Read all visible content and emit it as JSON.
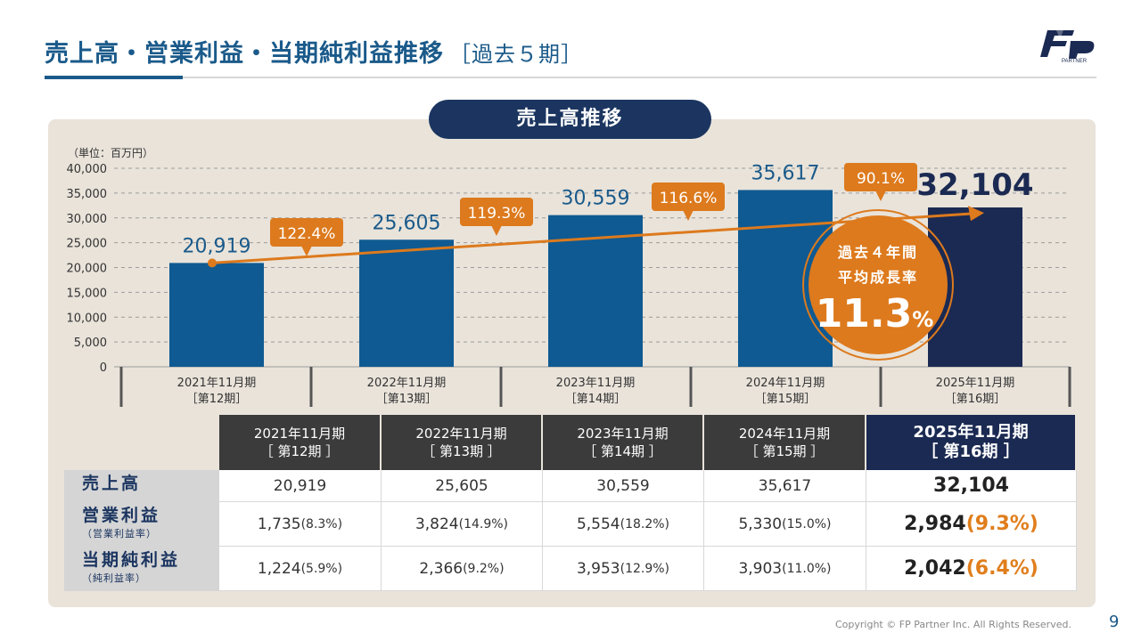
{
  "title": {
    "main": "売上高・営業利益・当期純利益推移",
    "sub": "［過去５期］"
  },
  "logo": {
    "text": "PARTNER"
  },
  "pill": "売上高推移",
  "chart_data": {
    "type": "bar",
    "title": "売上高推移",
    "unit_label": "（単位：百万円）",
    "ylim": [
      0,
      40000
    ],
    "yticks": [
      "40,000",
      "35,000",
      "30,000",
      "25,000",
      "20,000",
      "15,000",
      "10,000",
      "5,000",
      "0"
    ],
    "ytick_values": [
      40000,
      35000,
      30000,
      25000,
      20000,
      15000,
      10000,
      5000,
      0
    ],
    "categories": [
      {
        "year": "2021年11月期",
        "period": "［第12期］"
      },
      {
        "year": "2022年11月期",
        "period": "［第13期］"
      },
      {
        "year": "2023年11月期",
        "period": "［第14期］"
      },
      {
        "year": "2024年11月期",
        "period": "［第15期］"
      },
      {
        "year": "2025年11月期",
        "period": "［第16期］"
      }
    ],
    "values": [
      20919,
      25605,
      30559,
      35617,
      32104
    ],
    "value_labels": [
      "20,919",
      "25,605",
      "30,559",
      "35,617",
      "32,104"
    ],
    "growth_rates": [
      "122.4%",
      "119.3%",
      "116.6%",
      "90.1%"
    ],
    "trend_start_value": 20919,
    "trend_end_value": 31000,
    "cagr": {
      "line1": "過去４年間",
      "line2": "平均成長率",
      "value": "11.3",
      "unit": "%"
    },
    "colors": {
      "bar": "#0f5a92",
      "bar_last": "#1b2a52",
      "accent": "#dd7a1d"
    }
  },
  "table": {
    "headers": [
      {
        "year": "2021年11月期",
        "period": "［ 第12期 ］"
      },
      {
        "year": "2022年11月期",
        "period": "［ 第13期 ］"
      },
      {
        "year": "2023年11月期",
        "period": "［ 第14期 ］"
      },
      {
        "year": "2024年11月期",
        "period": "［ 第15期 ］"
      },
      {
        "year": "2025年11月期",
        "period": "［ 第16期 ］"
      }
    ],
    "rows": [
      {
        "label": "売上高",
        "sublabel": "",
        "values": [
          {
            "v": "20,919",
            "p": ""
          },
          {
            "v": "25,605",
            "p": ""
          },
          {
            "v": "30,559",
            "p": ""
          },
          {
            "v": "35,617",
            "p": ""
          },
          {
            "v": "32,104",
            "p": ""
          }
        ]
      },
      {
        "label": "営業利益",
        "sublabel": "（営業利益率）",
        "values": [
          {
            "v": "1,735",
            "p": "(8.3%)"
          },
          {
            "v": "3,824",
            "p": "(14.9%)"
          },
          {
            "v": "5,554",
            "p": "(18.2%)"
          },
          {
            "v": "5,330",
            "p": "(15.0%)"
          },
          {
            "v": "2,984",
            "p": "(9.3%)"
          }
        ]
      },
      {
        "label": "当期純利益",
        "sublabel": "（純利益率）",
        "values": [
          {
            "v": "1,224",
            "p": "(5.9%)"
          },
          {
            "v": "2,366",
            "p": "(9.2%)"
          },
          {
            "v": "3,953",
            "p": "(12.9%)"
          },
          {
            "v": "3,903",
            "p": "(11.0%)"
          },
          {
            "v": "2,042",
            "p": "(6.4%)"
          }
        ]
      }
    ]
  },
  "footer": "Copyright © FP Partner Inc. All Rights Reserved.",
  "page_number": "9"
}
